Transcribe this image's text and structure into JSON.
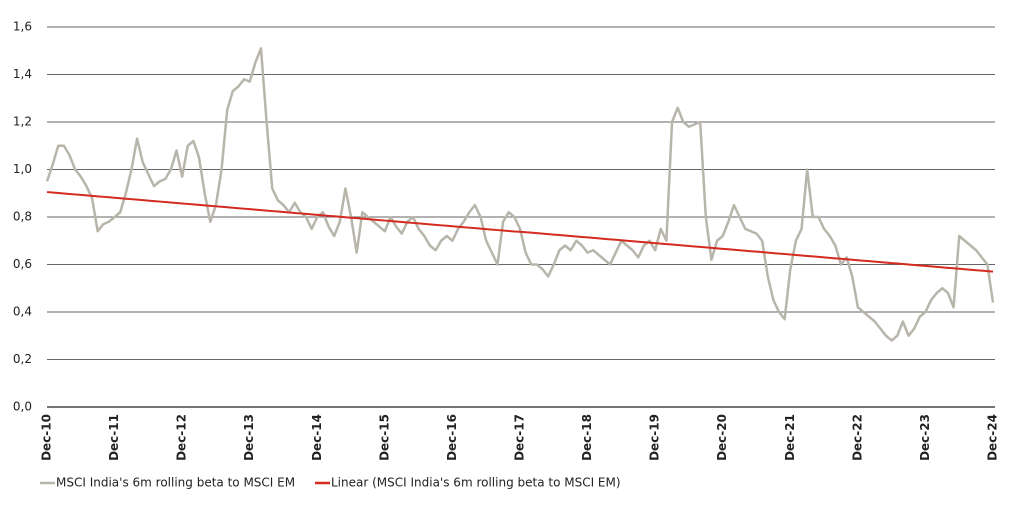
{
  "chart_data": {
    "type": "line",
    "categories": [
      "Dec-10",
      null,
      null,
      null,
      null,
      null,
      null,
      null,
      null,
      null,
      null,
      null,
      "Dec-11",
      null,
      null,
      null,
      null,
      null,
      null,
      null,
      null,
      null,
      null,
      null,
      "Dec-12",
      null,
      null,
      null,
      null,
      null,
      null,
      null,
      null,
      null,
      null,
      null,
      "Dec-13",
      null,
      null,
      null,
      null,
      null,
      null,
      null,
      null,
      null,
      null,
      null,
      "Dec-14",
      null,
      null,
      null,
      null,
      null,
      null,
      null,
      null,
      null,
      null,
      null,
      "Dec-15",
      null,
      null,
      null,
      null,
      null,
      null,
      null,
      null,
      null,
      null,
      null,
      "Dec-16",
      null,
      null,
      null,
      null,
      null,
      null,
      null,
      null,
      null,
      null,
      null,
      "Dec-17",
      null,
      null,
      null,
      null,
      null,
      null,
      null,
      null,
      null,
      null,
      null,
      "Dec-18",
      null,
      null,
      null,
      null,
      null,
      null,
      null,
      null,
      null,
      null,
      null,
      "Dec-19",
      null,
      null,
      null,
      null,
      null,
      null,
      null,
      null,
      null,
      null,
      null,
      "Dec-20",
      null,
      null,
      null,
      null,
      null,
      null,
      null,
      null,
      null,
      null,
      null,
      "Dec-21",
      null,
      null,
      null,
      null,
      null,
      null,
      null,
      null,
      null,
      null,
      null,
      "Dec-22",
      null,
      null,
      null,
      null,
      null,
      null,
      null,
      null,
      null,
      null,
      null,
      "Dec-23",
      null,
      null,
      null,
      null,
      null,
      null,
      null,
      null,
      null,
      null,
      null,
      "Dec-24"
    ],
    "series": [
      {
        "name": "MSCI India's 6m rolling beta to MSCI EM",
        "color": "#b8b5aa",
        "values": [
          0.95,
          1.02,
          1.1,
          1.1,
          1.06,
          1.0,
          0.97,
          0.93,
          0.88,
          0.74,
          0.77,
          0.78,
          0.8,
          0.82,
          0.9,
          1.0,
          1.13,
          1.03,
          0.98,
          0.93,
          0.95,
          0.96,
          1.0,
          1.08,
          0.97,
          1.1,
          1.12,
          1.05,
          0.9,
          0.78,
          0.85,
          1.0,
          1.25,
          1.33,
          1.35,
          1.38,
          1.37,
          1.45,
          1.51,
          1.2,
          0.92,
          0.87,
          0.85,
          0.82,
          0.86,
          0.82,
          0.8,
          0.75,
          0.8,
          0.82,
          0.76,
          0.72,
          0.78,
          0.92,
          0.8,
          0.65,
          0.82,
          0.8,
          0.78,
          0.76,
          0.74,
          0.8,
          0.76,
          0.73,
          0.78,
          0.8,
          0.75,
          0.72,
          0.68,
          0.66,
          0.7,
          0.72,
          0.7,
          0.75,
          0.78,
          0.82,
          0.85,
          0.8,
          0.7,
          0.65,
          0.6,
          0.78,
          0.82,
          0.8,
          0.75,
          0.65,
          0.6,
          0.6,
          0.58,
          0.55,
          0.6,
          0.66,
          0.68,
          0.66,
          0.7,
          0.68,
          0.65,
          0.66,
          0.64,
          0.62,
          0.6,
          0.65,
          0.7,
          0.68,
          0.66,
          0.63,
          0.68,
          0.7,
          0.66,
          0.75,
          0.7,
          1.2,
          1.26,
          1.2,
          1.18,
          1.19,
          1.2,
          0.8,
          0.62,
          0.7,
          0.72,
          0.78,
          0.85,
          0.8,
          0.75,
          0.74,
          0.73,
          0.7,
          0.55,
          0.45,
          0.4,
          0.37,
          0.58,
          0.7,
          0.75,
          1.0,
          0.8,
          0.8,
          0.75,
          0.72,
          0.68,
          0.6,
          0.63,
          0.55,
          0.42,
          0.4,
          0.38,
          0.36,
          0.33,
          0.3,
          0.28,
          0.3,
          0.36,
          0.3,
          0.33,
          0.38,
          0.4,
          0.45,
          0.48,
          0.5,
          0.48,
          0.42,
          0.72,
          0.7,
          0.68,
          0.66,
          0.63,
          0.6,
          0.44
        ]
      },
      {
        "name": "Linear (MSCI India's 6m rolling beta to MSCI EM)",
        "color": "#d42a20",
        "values": [
          0.905,
          0.903,
          0.901,
          0.899,
          0.897,
          0.895,
          0.893,
          0.891,
          0.889,
          0.887,
          0.885,
          0.883,
          0.881,
          0.879,
          0.877,
          0.875,
          0.873,
          0.871,
          0.869,
          0.867,
          0.865,
          0.863,
          0.861,
          0.859,
          0.857,
          0.855,
          0.853,
          0.851,
          0.849,
          0.847,
          0.845,
          0.843,
          0.841,
          0.839,
          0.837,
          0.835,
          0.833,
          0.831,
          0.829,
          0.827,
          0.825,
          0.823,
          0.821,
          0.819,
          0.817,
          0.815,
          0.813,
          0.811,
          0.809,
          0.807,
          0.805,
          0.803,
          0.801,
          0.799,
          0.797,
          0.795,
          0.793,
          0.791,
          0.789,
          0.787,
          0.785,
          0.783,
          0.781,
          0.779,
          0.777,
          0.775,
          0.773,
          0.771,
          0.769,
          0.767,
          0.765,
          0.763,
          0.761,
          0.759,
          0.757,
          0.755,
          0.753,
          0.751,
          0.749,
          0.747,
          0.745,
          0.743,
          0.741,
          0.739,
          0.738,
          0.736,
          0.734,
          0.732,
          0.73,
          0.728,
          0.726,
          0.724,
          0.722,
          0.72,
          0.718,
          0.716,
          0.714,
          0.712,
          0.71,
          0.708,
          0.706,
          0.704,
          0.702,
          0.7,
          0.698,
          0.696,
          0.694,
          0.692,
          0.69,
          0.688,
          0.686,
          0.684,
          0.682,
          0.68,
          0.678,
          0.676,
          0.674,
          0.672,
          0.67,
          0.668,
          0.666,
          0.664,
          0.662,
          0.66,
          0.658,
          0.656,
          0.654,
          0.652,
          0.65,
          0.648,
          0.646,
          0.644,
          0.642,
          0.64,
          0.638,
          0.636,
          0.634,
          0.632,
          0.63,
          0.628,
          0.626,
          0.624,
          0.622,
          0.62,
          0.618,
          0.616,
          0.614,
          0.612,
          0.61,
          0.608,
          0.606,
          0.604,
          0.602,
          0.6,
          0.598,
          0.596,
          0.594,
          0.592,
          0.59,
          0.588,
          0.586,
          0.584,
          0.582,
          0.58,
          0.578,
          0.576,
          0.574,
          0.572,
          0.57
        ]
      }
    ],
    "ylim": [
      0,
      1.6
    ],
    "yticks": [
      {
        "value": 0,
        "label": "0,0"
      },
      {
        "value": 0.2,
        "label": "0,2"
      },
      {
        "value": 0.4,
        "label": "0,4"
      },
      {
        "value": 0.6,
        "label": "0,6"
      },
      {
        "value": 0.8,
        "label": "0,8"
      },
      {
        "value": 1.0,
        "label": "1,0"
      },
      {
        "value": 1.2,
        "label": "1,2"
      },
      {
        "value": 1.4,
        "label": "1,4"
      },
      {
        "value": 1.6,
        "label": "1,6"
      }
    ],
    "grid": true,
    "legend": "bottom"
  }
}
